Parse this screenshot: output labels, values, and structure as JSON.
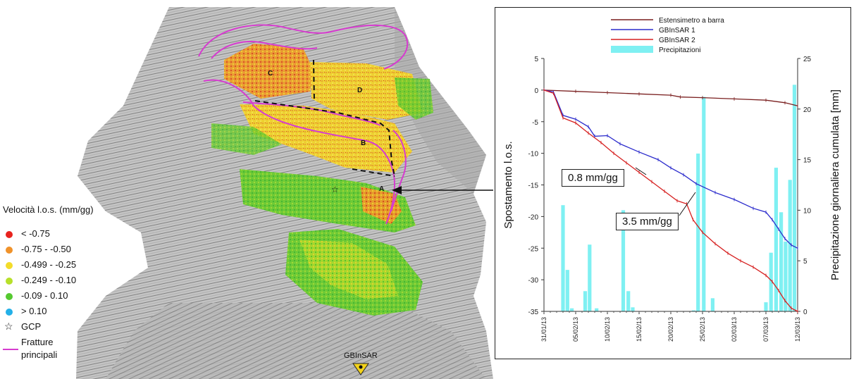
{
  "map": {
    "zone_labels": [
      "C",
      "D",
      "B",
      "A"
    ],
    "station_label": "GBInSAR"
  },
  "legend": {
    "title": "Velocità l.o.s. (mm/gg)",
    "items": [
      {
        "label": "< -0.75",
        "color": "#e8231e"
      },
      {
        "label": "-0.75 - -0.50",
        "color": "#f0922a"
      },
      {
        "label": "-0.499 - -0.25",
        "color": "#f3dc2a"
      },
      {
        "label": "-0.249 - -0.10",
        "color": "#b7e02a"
      },
      {
        "label": "-0.09 - 0.10",
        "color": "#55c930"
      },
      {
        "label": "> 0.10",
        "color": "#23b0e8"
      }
    ],
    "gcp_label": "GCP",
    "fracture_label_1": "Fratture",
    "fracture_label_2": "principali",
    "fracture_color": "#d63ccf"
  },
  "callouts": {
    "gb1_rate": "0.8 mm/gg",
    "gb2_rate": "3.5 mm/gg"
  },
  "chart_data": {
    "type": "line",
    "ylabel": "Spostamento l.o.s.",
    "y2label": "Precipitazione giornaliera cumulata [mm]",
    "ylim": [
      -35,
      5
    ],
    "y2lim": [
      0,
      25
    ],
    "yticks": [
      5,
      0,
      -5,
      -10,
      -15,
      -20,
      -25,
      -30,
      -35
    ],
    "y2ticks": [
      25,
      20,
      15,
      10,
      5,
      0
    ],
    "x_day_offset": [
      0,
      5,
      10,
      15,
      20,
      25,
      30,
      35,
      40
    ],
    "x_tick_labels": [
      "31/01/13",
      "05/02/13",
      "10/02/13",
      "15/02/13",
      "20/02/13",
      "25/02/13",
      "02/03/13",
      "07/03/13",
      "12/03/13"
    ],
    "legend_position": "top-center",
    "series": [
      {
        "name": "Estensimetro a barra",
        "color": "#7a1f1f",
        "x": [
          0,
          5,
          10,
          15,
          20,
          21.5,
          25,
          30,
          35,
          38,
          40
        ],
        "y": [
          0,
          -0.2,
          -0.4,
          -0.6,
          -0.8,
          -1.1,
          -1.2,
          -1.4,
          -1.6,
          -2.0,
          -2.5
        ]
      },
      {
        "name": "GBInSAR 1",
        "color": "#2b2bcc",
        "x": [
          0,
          1.5,
          3,
          5,
          7,
          8,
          10,
          12,
          15,
          18,
          20,
          22,
          24,
          27,
          30,
          33,
          35,
          36,
          37,
          38,
          39,
          40
        ],
        "y": [
          0,
          -0.3,
          -4.0,
          -4.6,
          -5.8,
          -7.3,
          -7.2,
          -8.5,
          -9.8,
          -11.0,
          -12.3,
          -13.4,
          -14.8,
          -16.2,
          -17.3,
          -18.7,
          -19.3,
          -20.5,
          -22.0,
          -23.5,
          -24.5,
          -25.0
        ]
      },
      {
        "name": "GBInSAR 2",
        "color": "#d62020",
        "x": [
          0,
          1.5,
          3,
          5,
          7,
          9,
          11,
          13,
          15,
          17,
          19,
          21,
          22.5,
          23.5,
          25,
          27,
          29,
          31,
          33,
          35,
          36,
          37,
          38,
          39,
          40
        ],
        "y": [
          0,
          -0.5,
          -4.4,
          -5.2,
          -6.8,
          -8.3,
          -10.0,
          -11.5,
          -13.0,
          -14.5,
          -16.0,
          -17.5,
          -18.0,
          -20.5,
          -22.5,
          -24.3,
          -25.8,
          -27.0,
          -28.0,
          -29.3,
          -30.3,
          -31.7,
          -33.3,
          -34.5,
          -35.0
        ]
      }
    ],
    "bars": {
      "name": "Precipitazioni",
      "color": "#7ff0f2",
      "x": [
        3,
        3.7,
        4.4,
        6.5,
        7.2,
        8.3,
        12.5,
        13.3,
        14.0,
        23.6,
        24.3,
        25.2,
        26.6,
        35.0,
        35.8,
        36.6,
        37.4,
        38.1,
        38.8,
        39.5
      ],
      "y": [
        10.5,
        4.1,
        0.3,
        2.0,
        6.6,
        0.3,
        10.0,
        2.0,
        0.4,
        0.1,
        15.6,
        21.2,
        1.3,
        0.9,
        5.8,
        14.2,
        9.8,
        6.9,
        13.0,
        22.4
      ]
    }
  }
}
